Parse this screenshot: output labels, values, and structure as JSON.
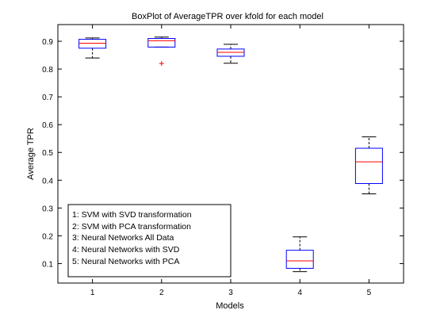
{
  "chart_data": {
    "type": "boxplot",
    "title": "BoxPlot of AverageTPR over kfold for each model",
    "xlabel": "Models",
    "ylabel": "Average TPR",
    "xlim": [
      0.5,
      5.5
    ],
    "ylim": [
      0.03,
      0.96
    ],
    "x_ticks": [
      "1",
      "2",
      "3",
      "4",
      "5"
    ],
    "y_ticks": [
      0.1,
      0.2,
      0.3,
      0.4,
      0.5,
      0.6,
      0.7,
      0.8,
      0.9
    ],
    "y_tick_labels": [
      "0.1",
      "0.2",
      "0.3",
      "0.4",
      "0.5",
      "0.6",
      "0.7",
      "0.8",
      "0.9"
    ],
    "grid": false,
    "legend_position": "bottom-left",
    "legend_lines": [
      "1: SVM with SVD transformation",
      "2: SVM with PCA transformation",
      "3: Neural Networks All Data",
      "4: Neural Networks with SVD",
      "5: Neural Networks with PCA"
    ],
    "boxes": [
      {
        "x": "1",
        "whisker_low": 0.84,
        "q1": 0.875,
        "median": 0.893,
        "q3": 0.907,
        "whisker_high": 0.912,
        "outliers": []
      },
      {
        "x": "2",
        "whisker_low": 0.879,
        "q1": 0.879,
        "median": 0.902,
        "q3": 0.91,
        "whisker_high": 0.915,
        "outliers": [
          0.82
        ]
      },
      {
        "x": "3",
        "whisker_low": 0.821,
        "q1": 0.846,
        "median": 0.86,
        "q3": 0.872,
        "whisker_high": 0.889,
        "outliers": []
      },
      {
        "x": "4",
        "whisker_low": 0.071,
        "q1": 0.083,
        "median": 0.11,
        "q3": 0.148,
        "whisker_high": 0.196,
        "outliers": []
      },
      {
        "x": "5",
        "whisker_low": 0.351,
        "q1": 0.388,
        "median": 0.466,
        "q3": 0.515,
        "whisker_high": 0.556,
        "outliers": []
      }
    ],
    "colors": {
      "box": "#0000ff",
      "median": "#ff0000",
      "whisker": "#000000",
      "outlier": "#ff0000"
    }
  }
}
